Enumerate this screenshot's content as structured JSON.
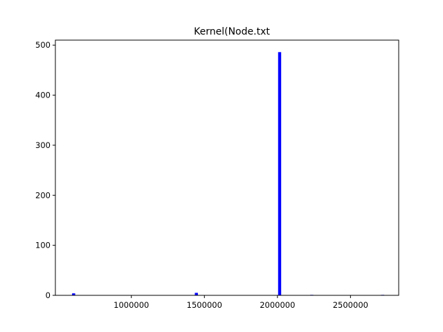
{
  "chart_data": {
    "type": "bar",
    "title": "Kernel(Node.txt",
    "xlabel": "",
    "ylabel": "",
    "xlim": [
      480000,
      2830000
    ],
    "ylim": [
      0,
      510
    ],
    "x_ticks": [
      1000000,
      1500000,
      2000000,
      2500000
    ],
    "x_tick_labels": [
      "1000000",
      "1500000",
      "2000000",
      "2500000"
    ],
    "y_ticks": [
      0,
      100,
      200,
      300,
      400,
      500
    ],
    "y_tick_labels": [
      "0",
      "100",
      "200",
      "300",
      "400",
      "500"
    ],
    "bar_width": 21000,
    "bar_color": "#0000ff",
    "grid": false,
    "bars": [
      {
        "x": 605000,
        "value": 4
      },
      {
        "x": 1445000,
        "value": 5
      },
      {
        "x": 2015000,
        "value": 486
      },
      {
        "x": 2235000,
        "value": 1
      },
      {
        "x": 2720000,
        "value": 1
      }
    ]
  }
}
